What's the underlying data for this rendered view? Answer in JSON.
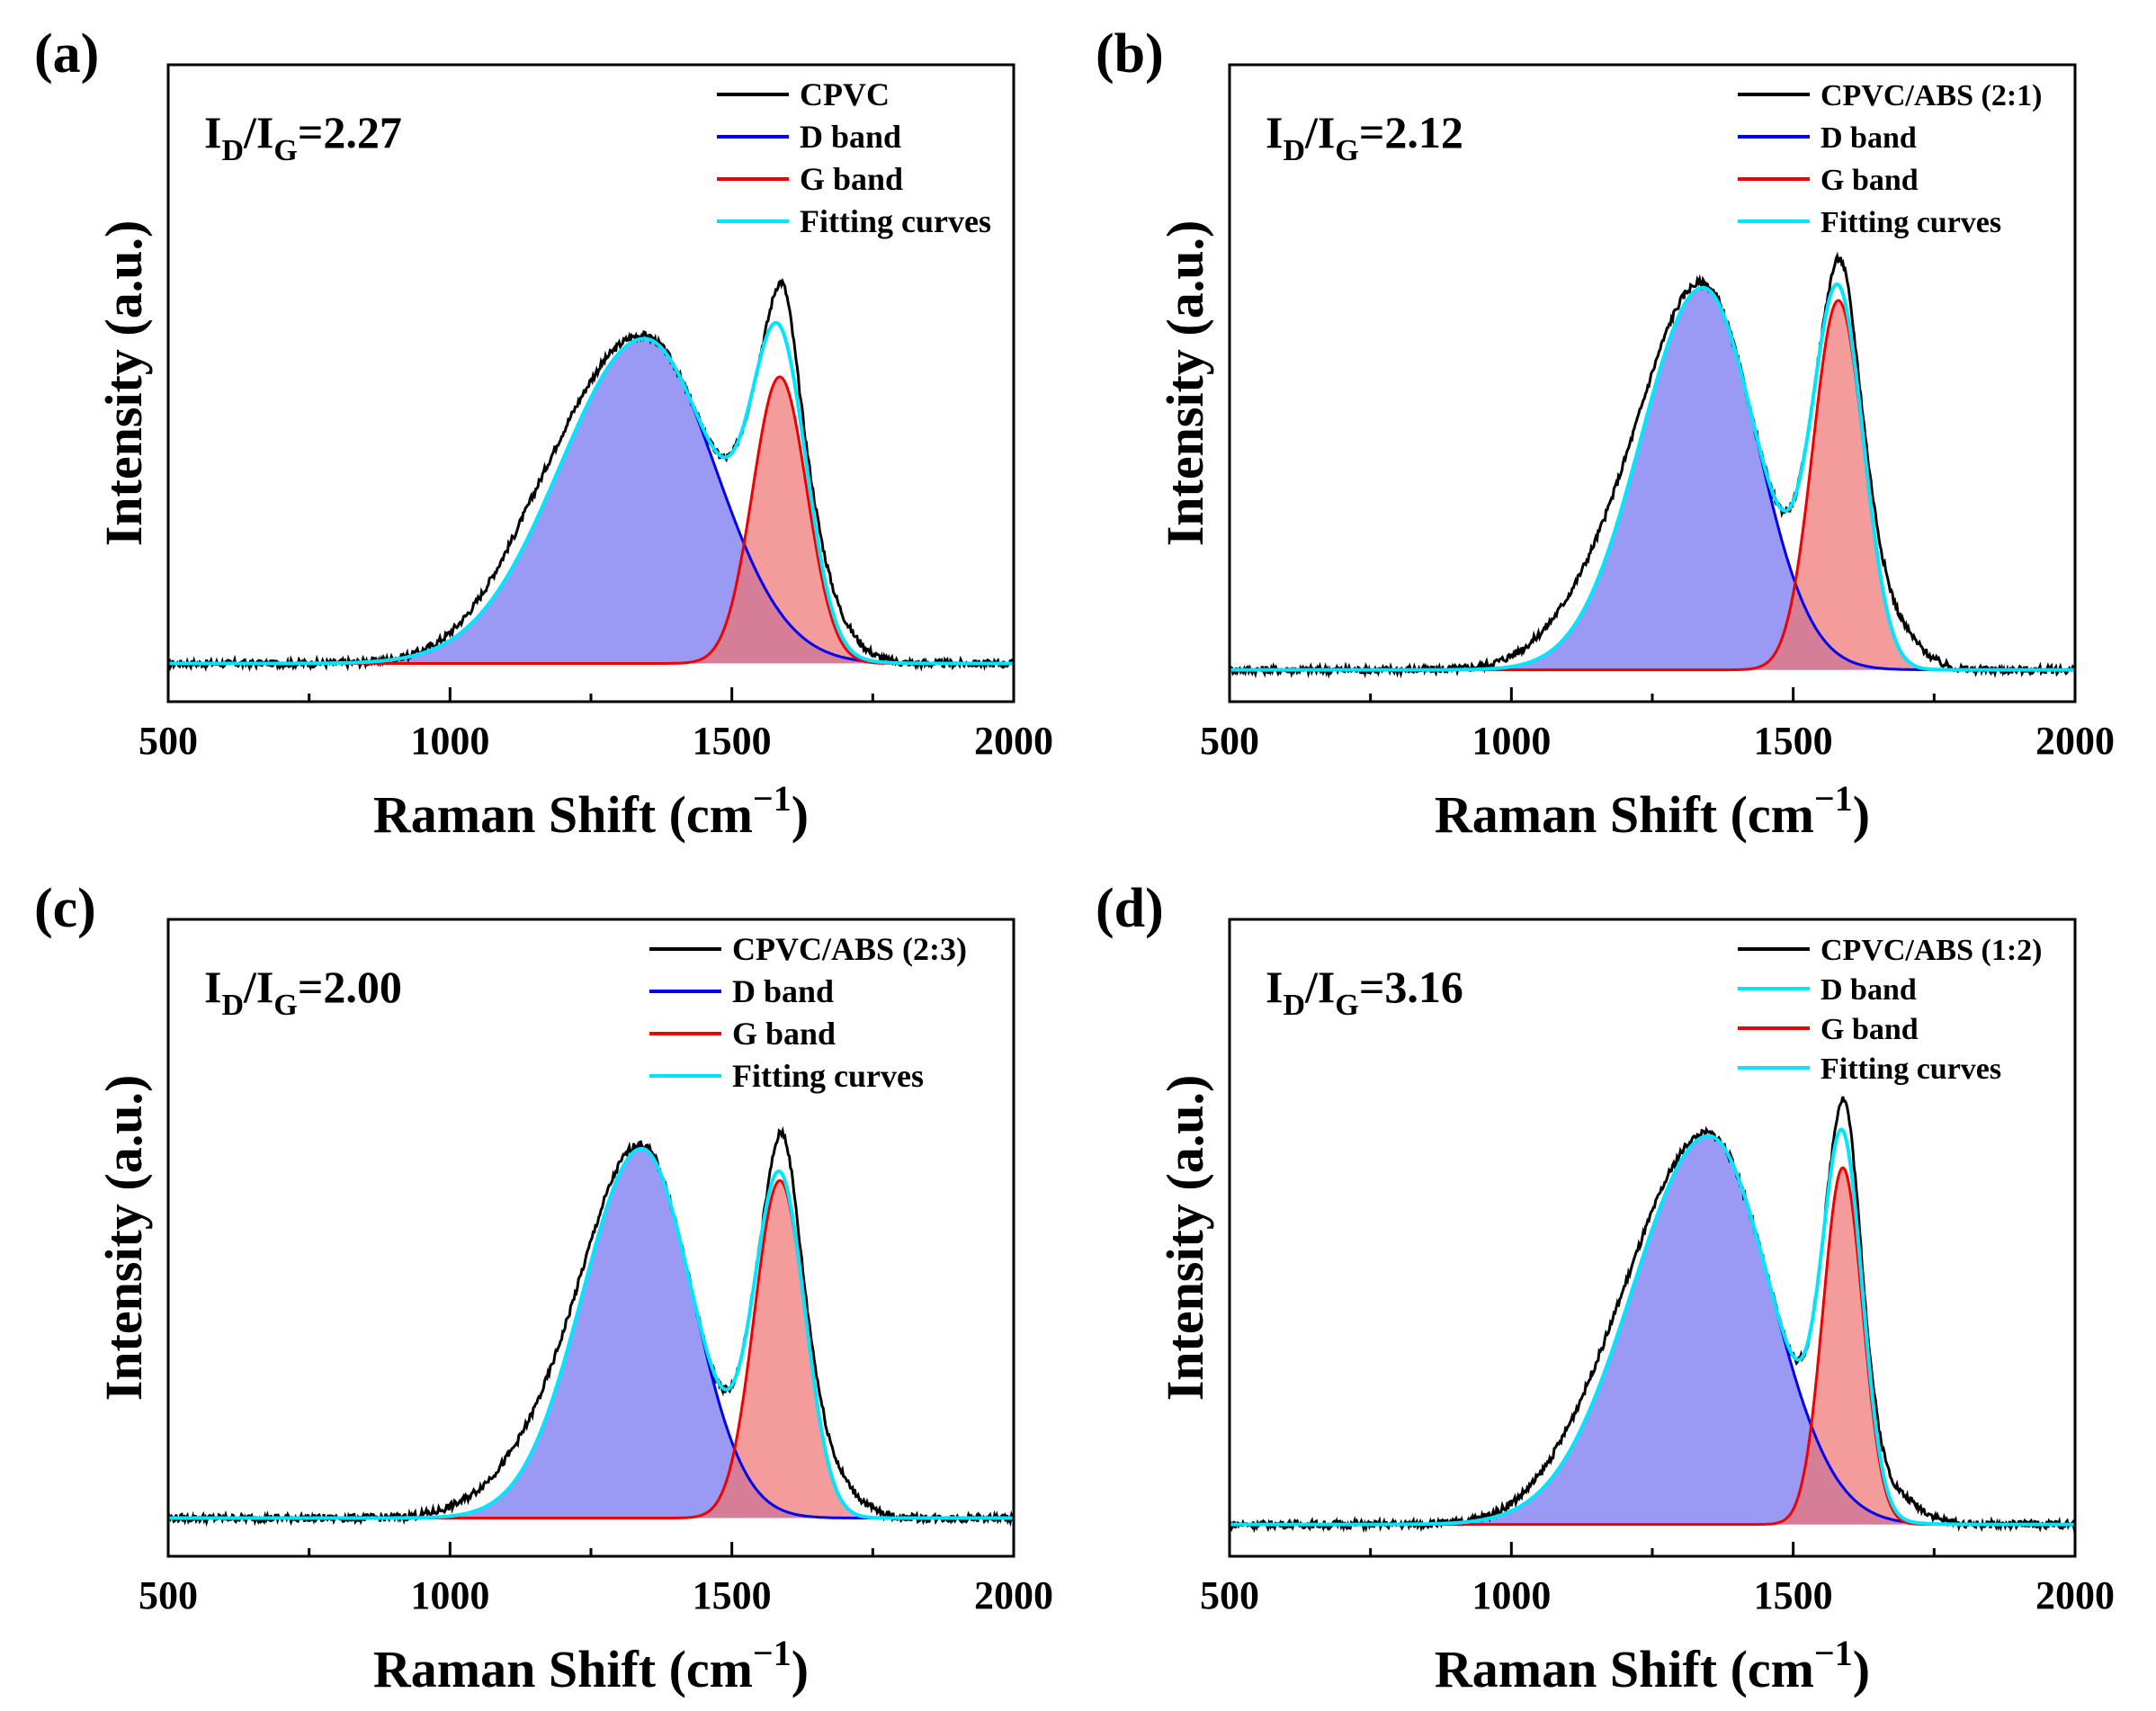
{
  "figure": {
    "caption_style": "four-panel Raman spectra"
  },
  "chart_data": [
    {
      "type": "line",
      "panel_label": "(a)",
      "ratio_label": {
        "prefix": "I",
        "sub_d": "D",
        "slash": "/I",
        "sub_g": "G",
        "value": "=2.27"
      },
      "xlabel": "Raman Shift (cm",
      "xlabel_sup": "−1",
      "xlabel_close": ")",
      "ylabel": "Intensity (a.u.)",
      "xlim": [
        500,
        2000
      ],
      "ylim": [
        0,
        1
      ],
      "xticks": [
        "500",
        "1000",
        "1500",
        "2000"
      ],
      "baseline": 0.06,
      "legend": [
        {
          "label": "CPVC",
          "color": "#000000"
        },
        {
          "label": "D band",
          "color": "#0000ee"
        },
        {
          "label": "G band",
          "color": "#ee0000"
        },
        {
          "label": "Fitting curves",
          "color": "#00e5ff"
        }
      ],
      "d_band": {
        "center": 1345,
        "height": 0.51,
        "width_left": 150,
        "width_right": 125
      },
      "g_band": {
        "center": 1585,
        "height": 0.45,
        "width": 48
      },
      "shoulder_extra": 0.05,
      "g_peak_extra": 0.07
    },
    {
      "type": "line",
      "panel_label": "(b)",
      "ratio_label": {
        "prefix": "I",
        "sub_d": "D",
        "slash": "/I",
        "sub_g": "G",
        "value": "=2.12"
      },
      "xlabel": "Raman Shift (cm",
      "xlabel_sup": "−1",
      "xlabel_close": ")",
      "ylabel": "Intensity (a.u.)",
      "xlim": [
        500,
        2000
      ],
      "ylim": [
        0,
        1
      ],
      "xticks": [
        "500",
        "1000",
        "1500",
        "2000"
      ],
      "baseline": 0.05,
      "legend": [
        {
          "label": "CPVC/ABS (2:1)",
          "color": "#000000"
        },
        {
          "label": "D band",
          "color": "#0000ee"
        },
        {
          "label": "G band",
          "color": "#ee0000"
        },
        {
          "label": "Fitting curves",
          "color": "#00e5ff"
        }
      ],
      "d_band": {
        "center": 1340,
        "height": 0.6,
        "width_left": 110,
        "width_right": 95
      },
      "g_band": {
        "center": 1580,
        "height": 0.58,
        "width": 45
      },
      "shoulder_extra": 0.07,
      "g_peak_extra": 0.04
    },
    {
      "type": "line",
      "panel_label": "(c)",
      "ratio_label": {
        "prefix": "I",
        "sub_d": "D",
        "slash": "/I",
        "sub_g": "G",
        "value": "=2.00"
      },
      "xlabel": "Raman Shift (cm",
      "xlabel_sup": "−1",
      "xlabel_close": ")",
      "ylabel": "Intensity (a.u.)",
      "xlim": [
        500,
        2000
      ],
      "ylim": [
        0,
        1
      ],
      "xticks": [
        "500",
        "1000",
        "1500",
        "2000"
      ],
      "baseline": 0.06,
      "legend": [
        {
          "label": "CPVC/ABS (2:3)",
          "color": "#000000"
        },
        {
          "label": "D band",
          "color": "#0000ee"
        },
        {
          "label": "G band",
          "color": "#ee0000"
        },
        {
          "label": "Fitting curves",
          "color": "#00e5ff"
        }
      ],
      "d_band": {
        "center": 1340,
        "height": 0.58,
        "width_left": 105,
        "width_right": 90
      },
      "g_band": {
        "center": 1585,
        "height": 0.53,
        "width": 45
      },
      "shoulder_extra": 0.06,
      "g_peak_extra": 0.06
    },
    {
      "type": "line",
      "panel_label": "(d)",
      "ratio_label": {
        "prefix": "I",
        "sub_d": "D",
        "slash": "/I",
        "sub_g": "G",
        "value": "=3.16"
      },
      "xlabel": "Raman Shift (cm",
      "xlabel_sup": "−1",
      "xlabel_close": ")",
      "ylabel": "Intensity (a.u.)",
      "xlim": [
        500,
        2000
      ],
      "ylim": [
        0,
        1
      ],
      "xticks": [
        "500",
        "1000",
        "1500",
        "2000"
      ],
      "baseline": 0.05,
      "legend": [
        {
          "label": "CPVC/ABS (1:2)",
          "color": "#000000"
        },
        {
          "label": "D band",
          "color": "#00e5ff"
        },
        {
          "label": "G band",
          "color": "#ee0000"
        },
        {
          "label": "Fitting curves",
          "color": "#00e5ff"
        }
      ],
      "d_band": {
        "center": 1350,
        "height": 0.61,
        "width_left": 135,
        "width_right": 110
      },
      "g_band": {
        "center": 1588,
        "height": 0.56,
        "width": 35
      },
      "shoulder_extra": 0.05,
      "g_peak_extra": 0.05
    }
  ],
  "colors": {
    "d_fill": "#7878f0",
    "g_fill": "#f07070",
    "overlap_fill": "#9050b0",
    "raw": "#000000",
    "d_line": "#0000ee",
    "g_line": "#ee0000",
    "fit": "#00e5ff"
  }
}
